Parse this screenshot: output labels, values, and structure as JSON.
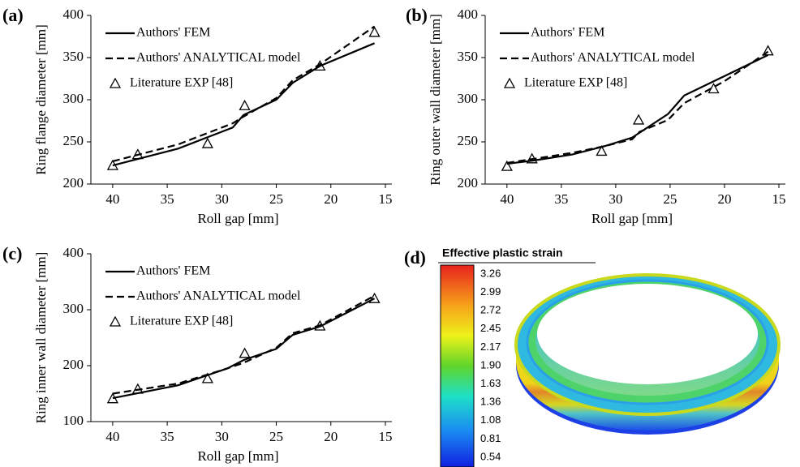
{
  "chart_data": [
    {
      "type": "line",
      "panel_label": "(a)",
      "x_label": "Roll gap [mm]",
      "y_label": "Ring flange diameter [mm]",
      "xlim": [
        42,
        15
      ],
      "xticks": [
        40,
        35,
        30,
        25,
        20,
        15
      ],
      "ylim": [
        200,
        400
      ],
      "yticks": [
        200,
        250,
        300,
        350,
        400
      ],
      "legend": "upper left",
      "series": [
        {
          "name": "Authors' FEM",
          "color": "#000000",
          "dash": false,
          "marker": "none",
          "x": [
            40,
            34,
            29,
            28,
            25,
            23.5,
            21,
            16
          ],
          "values": [
            222,
            242,
            267,
            282,
            300,
            320,
            340,
            367
          ]
        },
        {
          "name": "Authors' ANALYTICAL model",
          "color": "#000000",
          "dash": true,
          "marker": "none",
          "x": [
            40,
            34,
            29,
            28,
            25,
            23.5,
            21,
            16
          ],
          "values": [
            227,
            247,
            272,
            280,
            302,
            323,
            342,
            387
          ]
        },
        {
          "name": "Literature EXP [48]",
          "color": "#000000",
          "dash": false,
          "marker": "triangle",
          "line": false,
          "x": [
            40,
            37.7,
            31.3,
            27.9,
            21,
            16
          ],
          "values": [
            222,
            235,
            248,
            293,
            340,
            380
          ]
        }
      ]
    },
    {
      "type": "line",
      "panel_label": "(b)",
      "x_label": "Roll gap [mm]",
      "y_label": "Ring outer wall diameter [mm]",
      "xlim": [
        42,
        15
      ],
      "xticks": [
        40,
        35,
        30,
        25,
        20,
        15
      ],
      "ylim": [
        200,
        400
      ],
      "yticks": [
        200,
        250,
        300,
        350,
        400
      ],
      "legend": "upper left",
      "series": [
        {
          "name": "Authors' FEM",
          "color": "#000000",
          "dash": false,
          "marker": "none",
          "x": [
            40,
            37.5,
            34,
            31,
            28.5,
            25.2,
            23.7,
            16
          ],
          "values": [
            224,
            228,
            235,
            245,
            255,
            283,
            305,
            353
          ]
        },
        {
          "name": "Authors' ANALYTICAL model",
          "color": "#000000",
          "dash": true,
          "marker": "none",
          "x": [
            40,
            37.5,
            34,
            31,
            28.5,
            27.8,
            25.2,
            23.7,
            20,
            16
          ],
          "values": [
            225,
            230,
            237,
            245,
            253,
            262,
            276,
            296,
            322,
            357
          ]
        },
        {
          "name": "Literature EXP [48]",
          "color": "#000000",
          "dash": false,
          "marker": "triangle",
          "line": false,
          "x": [
            40,
            37.7,
            31.3,
            27.9,
            21,
            16
          ],
          "values": [
            221,
            230,
            239,
            276,
            313,
            358
          ]
        }
      ]
    },
    {
      "type": "line",
      "panel_label": "(c)",
      "x_label": "Roll gap [mm]",
      "y_label": "Ring inner wall diameter [mm]",
      "xlim": [
        42,
        15
      ],
      "xticks": [
        40,
        35,
        30,
        25,
        20,
        15
      ],
      "ylim": [
        100,
        400
      ],
      "yticks": [
        100,
        200,
        300,
        400
      ],
      "legend": "upper left",
      "series": [
        {
          "name": "Authors' FEM",
          "color": "#000000",
          "dash": false,
          "marker": "none",
          "x": [
            40,
            34,
            29.5,
            28,
            25,
            23.5,
            21,
            16
          ],
          "values": [
            142,
            165,
            195,
            210,
            230,
            255,
            270,
            320
          ]
        },
        {
          "name": "Authors' ANALYTICAL model",
          "color": "#000000",
          "dash": true,
          "marker": "none",
          "x": [
            40,
            34,
            29.5,
            28,
            25,
            23.5,
            21,
            16
          ],
          "values": [
            150,
            168,
            195,
            205,
            232,
            258,
            272,
            325
          ]
        },
        {
          "name": "Literature EXP [48]",
          "color": "#000000",
          "dash": false,
          "marker": "triangle",
          "line": false,
          "x": [
            40,
            37.7,
            31.3,
            27.9,
            21,
            16
          ],
          "values": [
            141,
            158,
            177,
            222,
            271,
            320
          ]
        }
      ]
    }
  ],
  "panel_d": {
    "panel_label": "(d)",
    "colorbar_title": "Effective plastic strain",
    "colorbar_labels": [
      "3.26",
      "2.99",
      "2.72",
      "2.45",
      "2.17",
      "1.90",
      "1.63",
      "1.36",
      "1.08",
      "0.81",
      "0.54"
    ]
  }
}
